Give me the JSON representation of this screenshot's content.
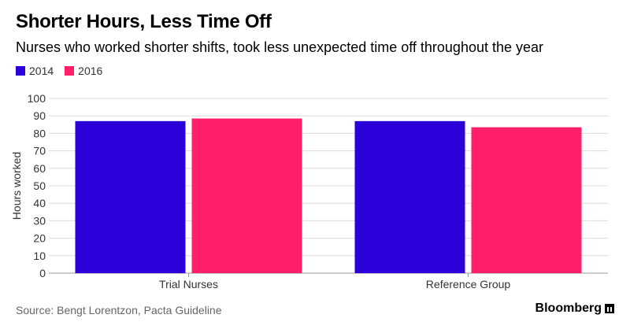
{
  "header": {
    "title": "Shorter Hours, Less Time Off",
    "subtitle": "Nurses who worked shorter shifts, took less unexpected time off throughout the year"
  },
  "legend": [
    {
      "label": "2014",
      "color": "#2b00d9"
    },
    {
      "label": "2016",
      "color": "#ff1f6a"
    }
  ],
  "footer": {
    "source": "Source: Bengt Lorentzon, Pacta Guideline",
    "brand": "Bloomberg"
  },
  "chart_data": {
    "type": "bar",
    "categories": [
      "Trial Nurses",
      "Reference Group"
    ],
    "series": [
      {
        "name": "2014",
        "values": [
          87,
          87
        ],
        "color": "#2b00d9"
      },
      {
        "name": "2016",
        "values": [
          88.5,
          83.5
        ],
        "color": "#ff1f6a"
      }
    ],
    "ylabel": "Hours worked",
    "xlabel": "",
    "ylim": [
      0,
      100
    ],
    "yticks": [
      0,
      10,
      20,
      30,
      40,
      50,
      60,
      70,
      80,
      90,
      100
    ],
    "grid": true,
    "legend_position": "top-left"
  }
}
